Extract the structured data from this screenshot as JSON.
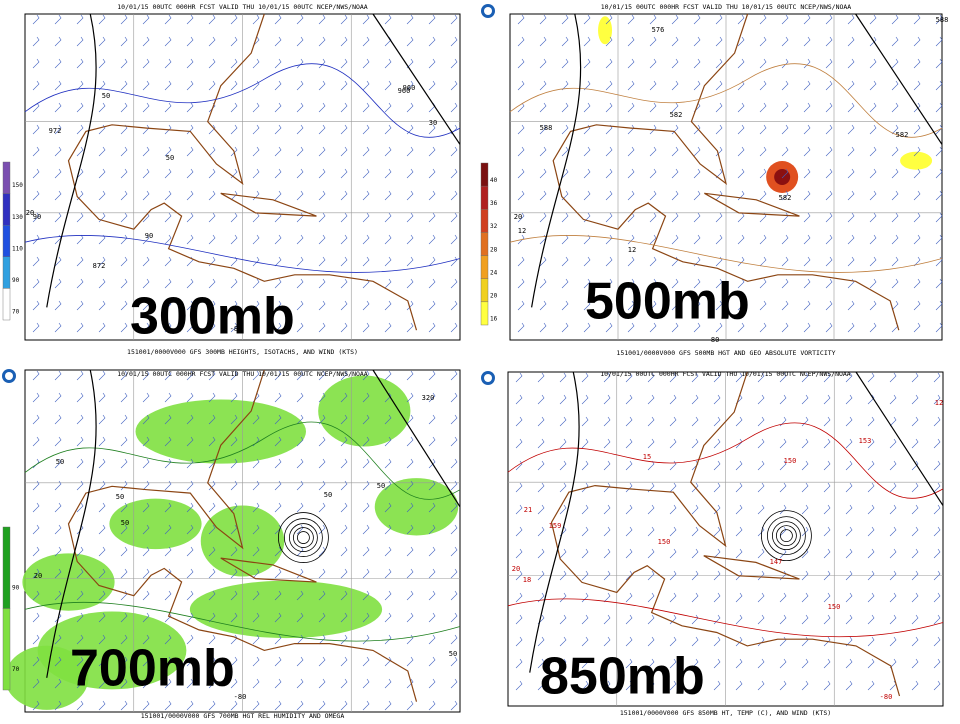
{
  "panels": [
    {
      "header": "10/01/15 00UTC 000HR FCST VALID THU 10/01/15 00UTC NCEP/NWS/NOAA",
      "footer": "151001/0000V000 GFS 300MB HEIGHTS, ISOTACHS, AND WIND (KTS)",
      "label": "300mb",
      "colorbar": [
        "150",
        "130",
        "110",
        "90",
        "70"
      ],
      "contour_labels": [
        "972",
        "960",
        "50",
        "90",
        "50",
        "30",
        "90",
        "872",
        "960",
        "-80",
        "20"
      ]
    },
    {
      "header": "10/01/15 00UTC 000HR FCST VALID THU 10/01/15 00UTC NCEP/NWS/NOAA",
      "footer": "151001/0000V000 GFS 500MB HGT AND GEO ABSOLUTE VORTICITY",
      "label": "500mb",
      "colorbar": [
        "40",
        "36",
        "32",
        "28",
        "24",
        "20",
        "16"
      ],
      "contour_labels": [
        "576",
        "588",
        "582",
        "582",
        "588",
        "582",
        "12",
        "12",
        "-80",
        "20"
      ]
    },
    {
      "header": "10/01/15 00UTC 000HR FCST VALID THU 10/01/15 00UTC NCEP/NWS/NOAA",
      "footer": "151001/0000V000 GFS 700MB HGT REL HUMIDITY AND OMEGA",
      "label": "700mb",
      "colorbar": [
        "90",
        "70"
      ],
      "contour_labels": [
        "320",
        "50",
        "50",
        "50",
        "50",
        "50",
        "50",
        "-80",
        "20"
      ]
    },
    {
      "header": "10/01/15 00UTC 000HR FCST VALID THU 10/01/15 00UTC NCEP/NWS/NOAA",
      "footer": "151001/0000V000 GFS 850MB HT, TEMP (C), AND WIND (KTS)",
      "label": "850mb",
      "colorbar": [],
      "contour_labels": [
        "159",
        "150",
        "150",
        "153",
        "150",
        "147",
        "21",
        "18",
        "15",
        "12",
        "-80",
        "20"
      ]
    }
  ]
}
